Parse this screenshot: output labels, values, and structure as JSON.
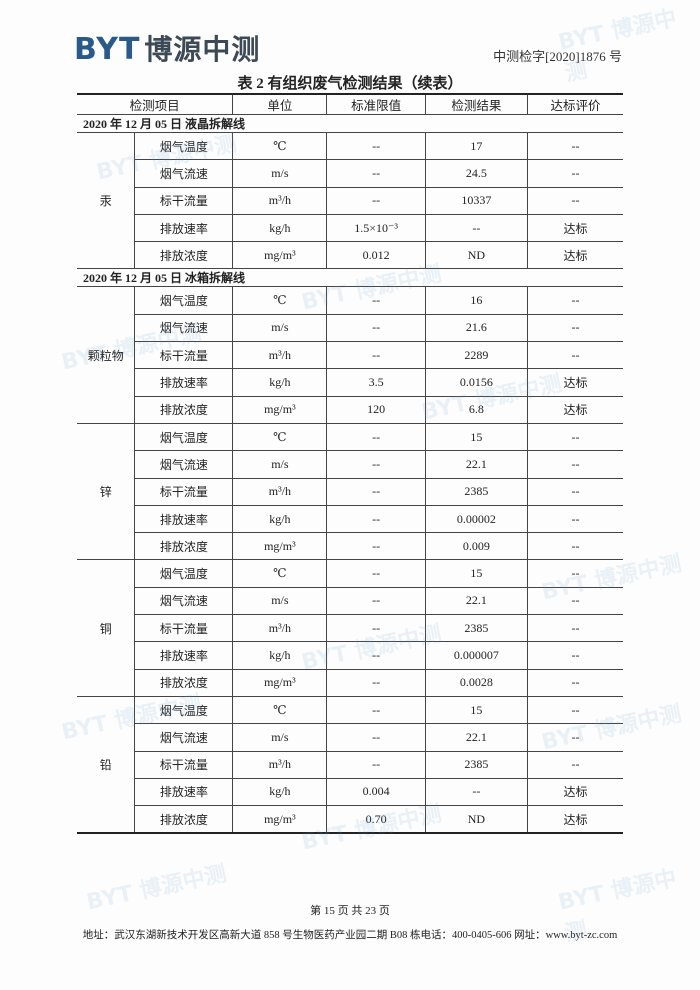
{
  "header": {
    "logo_latin": "BYT",
    "logo_cn": "博源中测",
    "doc_number": "中测检字[2020]1876 号"
  },
  "title": "表 2  有组织废气检测结果（续表）",
  "table": {
    "columns": [
      "检测项目",
      "单位",
      "标准限值",
      "检测结果",
      "达标评价"
    ],
    "sections": [
      {
        "date_line": "2020 年 12 月 05 日    液晶拆解线",
        "groups": [
          {
            "pollutant": "汞",
            "rows": [
              [
                "烟气温度",
                "℃",
                "--",
                "17",
                "--"
              ],
              [
                "烟气流速",
                "m/s",
                "--",
                "24.5",
                "--"
              ],
              [
                "标干流量",
                "m³/h",
                "--",
                "10337",
                "--"
              ],
              [
                "排放速率",
                "kg/h",
                "1.5×10⁻³",
                "--",
                "达标"
              ],
              [
                "排放浓度",
                "mg/m³",
                "0.012",
                "ND",
                "达标"
              ]
            ]
          }
        ]
      },
      {
        "date_line": "2020 年 12 月 05 日    冰箱拆解线",
        "groups": [
          {
            "pollutant": "颗粒物",
            "rows": [
              [
                "烟气温度",
                "℃",
                "--",
                "16",
                "--"
              ],
              [
                "烟气流速",
                "m/s",
                "--",
                "21.6",
                "--"
              ],
              [
                "标干流量",
                "m³/h",
                "--",
                "2289",
                "--"
              ],
              [
                "排放速率",
                "kg/h",
                "3.5",
                "0.0156",
                "达标"
              ],
              [
                "排放浓度",
                "mg/m³",
                "120",
                "6.8",
                "达标"
              ]
            ]
          },
          {
            "pollutant": "锌",
            "rows": [
              [
                "烟气温度",
                "℃",
                "--",
                "15",
                "--"
              ],
              [
                "烟气流速",
                "m/s",
                "--",
                "22.1",
                "--"
              ],
              [
                "标干流量",
                "m³/h",
                "--",
                "2385",
                "--"
              ],
              [
                "排放速率",
                "kg/h",
                "--",
                "0.00002",
                "--"
              ],
              [
                "排放浓度",
                "mg/m³",
                "--",
                "0.009",
                "--"
              ]
            ]
          },
          {
            "pollutant": "铜",
            "rows": [
              [
                "烟气温度",
                "℃",
                "--",
                "15",
                "--"
              ],
              [
                "烟气流速",
                "m/s",
                "--",
                "22.1",
                "--"
              ],
              [
                "标干流量",
                "m³/h",
                "--",
                "2385",
                "--"
              ],
              [
                "排放速率",
                "kg/h",
                "--",
                "0.000007",
                "--"
              ],
              [
                "排放浓度",
                "mg/m³",
                "--",
                "0.0028",
                "--"
              ]
            ]
          },
          {
            "pollutant": "铅",
            "rows": [
              [
                "烟气温度",
                "℃",
                "--",
                "15",
                "--"
              ],
              [
                "烟气流速",
                "m/s",
                "--",
                "22.1",
                "--"
              ],
              [
                "标干流量",
                "m³/h",
                "--",
                "2385",
                "--"
              ],
              [
                "排放速率",
                "kg/h",
                "0.004",
                "--",
                "达标"
              ],
              [
                "排放浓度",
                "mg/m³",
                "0.70",
                "ND",
                "达标"
              ]
            ]
          }
        ]
      }
    ]
  },
  "footer": {
    "page": "第 15 页 共 23 页",
    "address": "地址：武汉东湖新技术开发区高新大道 858 号生物医药产业园二期 B08 栋电话：400-0405-606 网址：www.byt-zc.com"
  },
  "watermark": "BYT 博源中测",
  "colors": {
    "brand": "#2a5a8a"
  }
}
